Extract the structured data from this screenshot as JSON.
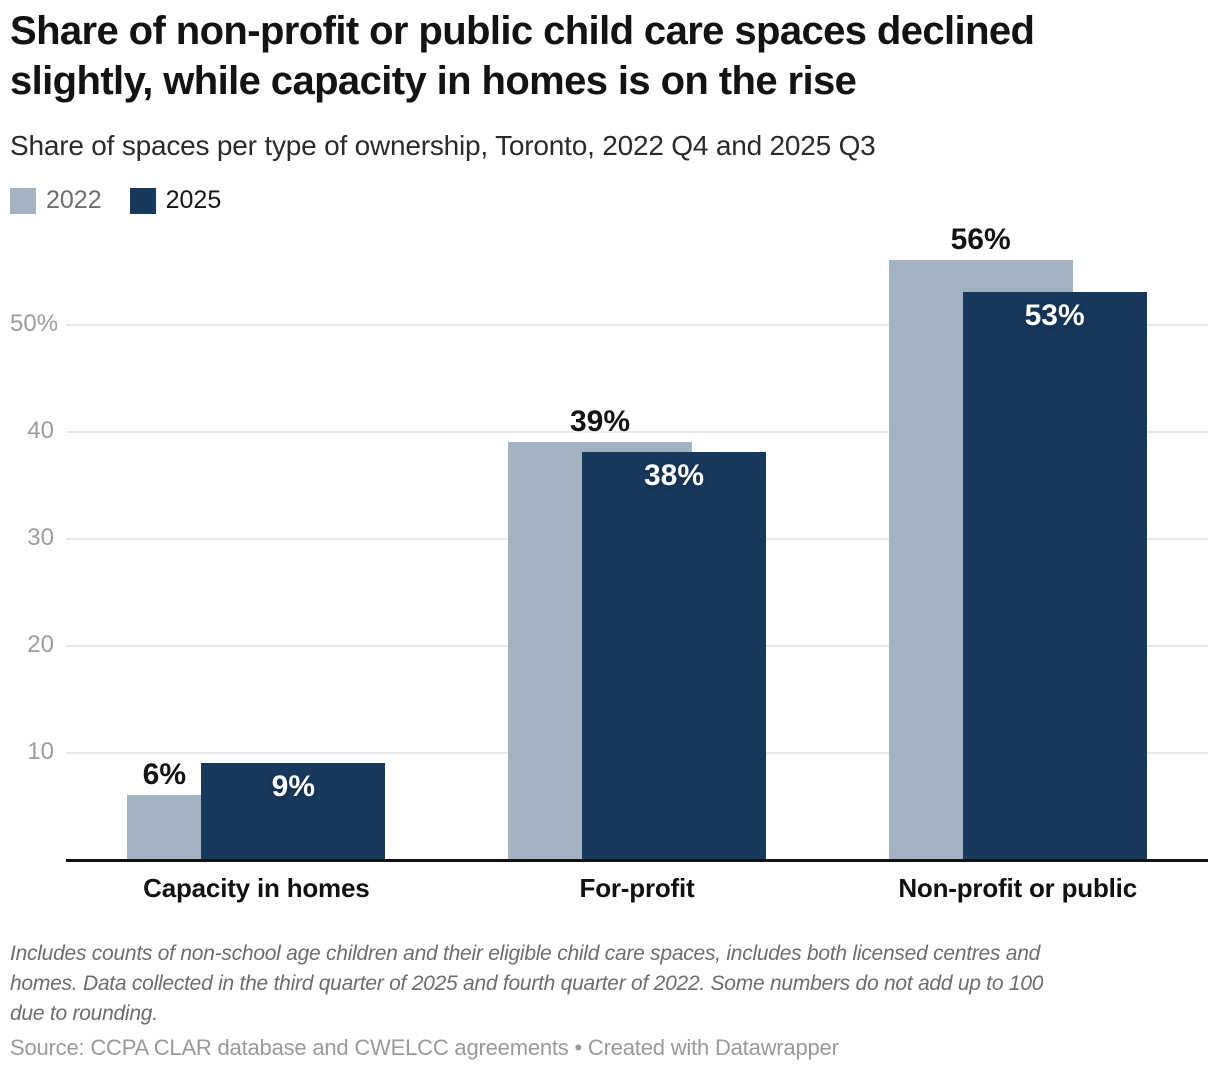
{
  "header": {
    "title": "Share of non-profit or public child care spaces declined\nslightly, while capacity in homes is on the rise",
    "subtitle": "Share of spaces per type of ownership, Toronto, 2022 Q4 and 2025 Q3"
  },
  "legend": {
    "items": [
      {
        "label": "2022",
        "color": "#a3b2c1"
      },
      {
        "label": "2025",
        "color": "#17395d"
      }
    ]
  },
  "chart_data": {
    "type": "bar",
    "title": "Share of non-profit or public child care spaces declined slightly, while capacity in homes is on the rise",
    "subtitle": "Share of spaces per type of ownership, Toronto, 2022 Q4 and 2025 Q3",
    "categories": [
      "Capacity in homes",
      "For-profit",
      "Non-profit or public"
    ],
    "series": [
      {
        "name": "2022",
        "color": "#a3b2c1",
        "values": [
          6,
          39,
          56
        ],
        "data_labels": [
          "6%",
          "39%",
          "56%"
        ]
      },
      {
        "name": "2025",
        "color": "#17395d",
        "values": [
          9,
          38,
          53
        ],
        "data_labels": [
          "9%",
          "38%",
          "53%"
        ]
      }
    ],
    "xlabel": "",
    "ylabel": "",
    "ylim": [
      0,
      58
    ],
    "yticks": [
      {
        "value": 10,
        "label": "10"
      },
      {
        "value": 20,
        "label": "20"
      },
      {
        "value": 30,
        "label": "30"
      },
      {
        "value": 40,
        "label": "40"
      },
      {
        "value": 50,
        "label": "50%"
      }
    ],
    "grid": "horizontal",
    "legend_position": "top-left",
    "bar_style": "grouped-overlapping"
  },
  "footer": {
    "note": "Includes counts of non-school age children and their eligible child care spaces, includes both licensed centres and\nhomes. Data collected in the third quarter of 2025 and fourth quarter of 2022. Some numbers do not add up to 100\ndue to rounding.",
    "source": "Source: CCPA CLAR database and CWELCC agreements • Created with Datawrapper"
  }
}
